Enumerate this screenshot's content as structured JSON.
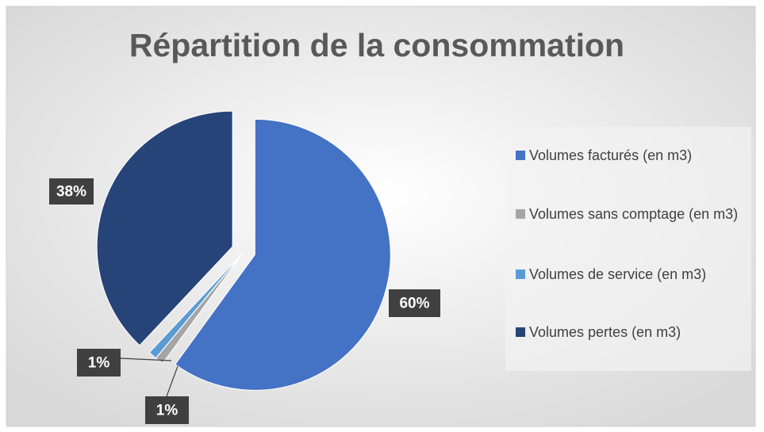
{
  "chart_data": {
    "type": "pie",
    "title": "Répartition de la consommation",
    "categories": [
      "Volumes facturés (en m3)",
      "Volumes sans comptage (en m3)",
      "Volumes de service (en m3)",
      "Volumes pertes (en m3)"
    ],
    "values": [
      60,
      1,
      1,
      38
    ],
    "value_labels": [
      "60%",
      "1%",
      "1%",
      "38%"
    ],
    "colors": [
      "#4472c4",
      "#a5a5a5",
      "#5b9bd5",
      "#264478"
    ],
    "legend": "right"
  }
}
